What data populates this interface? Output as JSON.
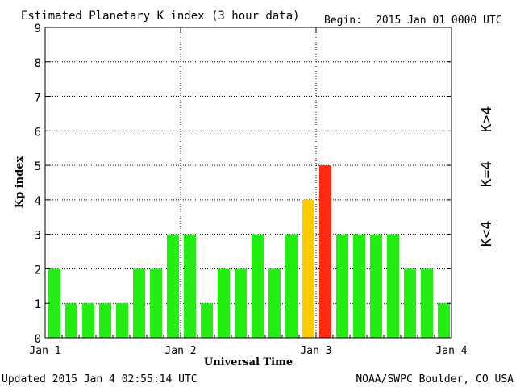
{
  "header": {
    "title": "Estimated Planetary K index (3 hour data)",
    "begin_label": "Begin:",
    "begin_value": "2015 Jan 01 0000 UTC"
  },
  "footer": {
    "updated": "Updated 2015 Jan  4 02:55:14 UTC",
    "source": "NOAA/SWPC Boulder, CO USA"
  },
  "legend": {
    "above": "K>4",
    "equal": "K=4",
    "below": "K<4"
  },
  "colors": {
    "below": "#22ee11",
    "equal": "#ffcc00",
    "above": "#ff2a10"
  },
  "chart_data": {
    "type": "bar",
    "title": "Estimated Planetary K index (3 hour data)",
    "xlabel": "Universal Time",
    "ylabel": "Kp index",
    "ylim": [
      0,
      9
    ],
    "yticks": [
      "0",
      "1",
      "2",
      "3",
      "4",
      "5",
      "6",
      "7",
      "8",
      "9"
    ],
    "xticks": [
      "Jan 1",
      "Jan 2",
      "Jan 3",
      "Jan 4"
    ],
    "grid": true,
    "values": [
      2,
      1,
      1,
      1,
      1,
      2,
      2,
      3,
      3,
      1,
      2,
      2,
      3,
      2,
      3,
      4,
      5,
      3,
      3,
      3,
      3,
      2,
      2,
      1
    ]
  }
}
